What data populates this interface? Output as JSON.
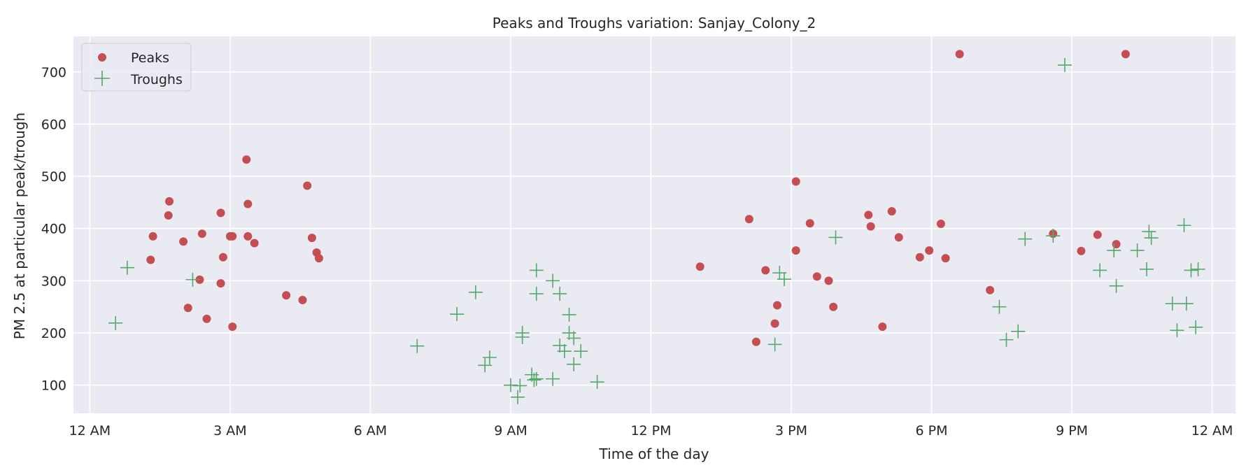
{
  "chart_data": {
    "type": "scatter",
    "title": "Peaks and Troughs variation: Sanjay_Colony_2",
    "xlabel": "Time of the day",
    "ylabel": "PM 2.5 at particular peak/trough",
    "xlim": [
      -0.35,
      24.5
    ],
    "ylim": [
      46,
      768
    ],
    "grid": true,
    "legend_position": "upper-left",
    "x_unit": "hours since 12 AM",
    "x_ticks": [
      {
        "value": 0,
        "label": "12 AM"
      },
      {
        "value": 3,
        "label": "3 AM"
      },
      {
        "value": 6,
        "label": "6 AM"
      },
      {
        "value": 9,
        "label": "9 AM"
      },
      {
        "value": 12,
        "label": "12 PM"
      },
      {
        "value": 15,
        "label": "3 PM"
      },
      {
        "value": 18,
        "label": "6 PM"
      },
      {
        "value": 21,
        "label": "9 PM"
      },
      {
        "value": 24,
        "label": "12 AM"
      }
    ],
    "y_ticks": [
      {
        "value": 100,
        "label": "100"
      },
      {
        "value": 200,
        "label": "200"
      },
      {
        "value": 300,
        "label": "300"
      },
      {
        "value": 400,
        "label": "400"
      },
      {
        "value": 500,
        "label": "500"
      },
      {
        "value": 600,
        "label": "600"
      },
      {
        "value": 700,
        "label": "700"
      }
    ],
    "series": [
      {
        "name": "Peaks",
        "marker": "circle",
        "color": "#c44e52",
        "points": [
          [
            1.3,
            340
          ],
          [
            1.35,
            385
          ],
          [
            1.68,
            425
          ],
          [
            1.7,
            452
          ],
          [
            2.0,
            375
          ],
          [
            2.1,
            248
          ],
          [
            2.35,
            302
          ],
          [
            2.4,
            390
          ],
          [
            2.5,
            227
          ],
          [
            2.8,
            295
          ],
          [
            2.8,
            430
          ],
          [
            2.85,
            345
          ],
          [
            3.0,
            385
          ],
          [
            3.05,
            385
          ],
          [
            3.05,
            212
          ],
          [
            3.35,
            532
          ],
          [
            3.38,
            447
          ],
          [
            3.38,
            385
          ],
          [
            3.52,
            372
          ],
          [
            4.2,
            272
          ],
          [
            4.55,
            263
          ],
          [
            4.65,
            482
          ],
          [
            4.75,
            382
          ],
          [
            4.85,
            354
          ],
          [
            4.9,
            343
          ],
          [
            13.05,
            327
          ],
          [
            14.1,
            418
          ],
          [
            14.25,
            183
          ],
          [
            14.45,
            320
          ],
          [
            14.65,
            218
          ],
          [
            14.7,
            253
          ],
          [
            15.1,
            490
          ],
          [
            15.1,
            358
          ],
          [
            15.4,
            410
          ],
          [
            15.55,
            308
          ],
          [
            15.8,
            300
          ],
          [
            15.9,
            250
          ],
          [
            16.65,
            426
          ],
          [
            16.7,
            404
          ],
          [
            16.95,
            212
          ],
          [
            17.15,
            433
          ],
          [
            17.3,
            383
          ],
          [
            17.75,
            345
          ],
          [
            17.95,
            358
          ],
          [
            18.2,
            409
          ],
          [
            18.3,
            343
          ],
          [
            18.6,
            734
          ],
          [
            19.25,
            282
          ],
          [
            20.6,
            390
          ],
          [
            21.2,
            357
          ],
          [
            21.55,
            388
          ],
          [
            21.95,
            370
          ],
          [
            22.15,
            734
          ]
        ]
      },
      {
        "name": "Troughs",
        "marker": "plus",
        "color": "#55a868",
        "points": [
          [
            0.55,
            219
          ],
          [
            0.8,
            325
          ],
          [
            2.2,
            302
          ],
          [
            7.0,
            175
          ],
          [
            7.85,
            236
          ],
          [
            8.25,
            278
          ],
          [
            8.45,
            138
          ],
          [
            8.55,
            153
          ],
          [
            9.0,
            100
          ],
          [
            9.15,
            77
          ],
          [
            9.2,
            99
          ],
          [
            9.25,
            192
          ],
          [
            9.25,
            200
          ],
          [
            9.45,
            120
          ],
          [
            9.5,
            110
          ],
          [
            9.55,
            112
          ],
          [
            9.55,
            275
          ],
          [
            9.55,
            320
          ],
          [
            9.9,
            112
          ],
          [
            9.9,
            300
          ],
          [
            10.05,
            176
          ],
          [
            10.05,
            275
          ],
          [
            10.15,
            165
          ],
          [
            10.25,
            200
          ],
          [
            10.25,
            235
          ],
          [
            10.35,
            190
          ],
          [
            10.35,
            140
          ],
          [
            10.5,
            165
          ],
          [
            10.85,
            106
          ],
          [
            14.65,
            178
          ],
          [
            14.75,
            315
          ],
          [
            14.85,
            303
          ],
          [
            15.95,
            383
          ],
          [
            19.45,
            250
          ],
          [
            19.6,
            187
          ],
          [
            19.85,
            203
          ],
          [
            20.0,
            380
          ],
          [
            20.6,
            386
          ],
          [
            20.85,
            713
          ],
          [
            21.6,
            320
          ],
          [
            21.9,
            358
          ],
          [
            21.95,
            290
          ],
          [
            22.4,
            358
          ],
          [
            22.6,
            322
          ],
          [
            22.65,
            394
          ],
          [
            22.7,
            382
          ],
          [
            23.15,
            256
          ],
          [
            23.25,
            205
          ],
          [
            23.4,
            406
          ],
          [
            23.45,
            256
          ],
          [
            23.55,
            320
          ],
          [
            23.65,
            211
          ],
          [
            23.7,
            322
          ]
        ]
      }
    ]
  }
}
